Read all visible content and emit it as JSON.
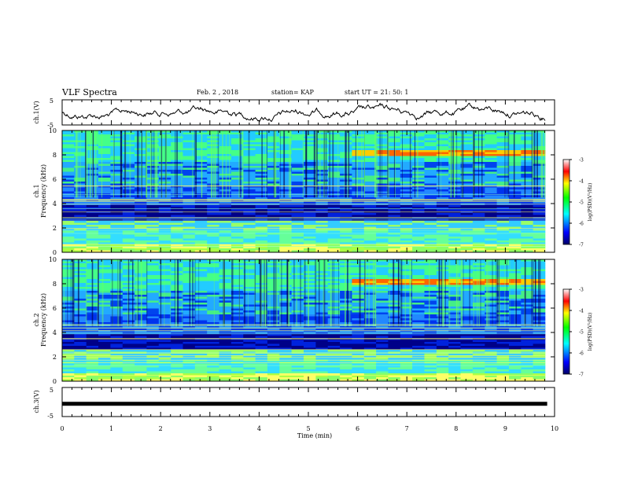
{
  "header": {
    "title": "VLF Spectra",
    "date": "Feb. 2 , 2018",
    "station": "station= KAP",
    "start": "start UT = 21: 50: 1"
  },
  "colors": {
    "trace": "#000000",
    "colormap": [
      "#000080",
      "#0000ff",
      "#00ffff",
      "#00ff00",
      "#ffff00",
      "#ff0000",
      "#ffffff"
    ]
  },
  "chart_data": [
    {
      "type": "line",
      "panel": "ch1-waveform",
      "ylabel": "ch.1(V)",
      "ylim": [
        -5,
        5
      ],
      "ytick_labels": [
        "-5",
        "5"
      ],
      "xlim": [
        0,
        10
      ],
      "series": [
        {
          "description_of_trace": "",
          "values": []
        }
      ]
    },
    {
      "type": "heatmap",
      "panel": "ch1-spectrogram",
      "ylabel": "ch.1 Frequency (kHz)",
      "ylim": [
        0,
        10
      ],
      "ytick_labels": [
        "0",
        "2",
        "4",
        "6",
        "8",
        "10"
      ],
      "xlim": [
        0,
        9.85
      ],
      "colorbar": {
        "label": "log(PSD)(V²/Hz)",
        "range": [
          -7,
          -3
        ],
        "tick_labels": [
          "-3",
          "-4",
          "-5",
          "-6",
          "-7"
        ]
      }
    },
    {
      "type": "heatmap",
      "panel": "ch2-spectrogram",
      "ylabel": "ch.2 Frequency (kHz)",
      "ylim": [
        0,
        10
      ],
      "ytick_labels": [
        "0",
        "2",
        "4",
        "6",
        "8",
        "10"
      ],
      "xlim": [
        0,
        9.85
      ],
      "colorbar": {
        "label": "log(PSD)(V²/Hz)",
        "range": [
          -7,
          -3
        ],
        "tick_labels": [
          "-3",
          "-4",
          "-5",
          "-6",
          "-7"
        ]
      }
    },
    {
      "type": "line",
      "panel": "ch3-waveform",
      "ylabel": "ch.3(V)",
      "ylim": [
        -5,
        5
      ],
      "ytick_labels": [
        "-5",
        "5"
      ],
      "xlim": [
        0,
        10
      ],
      "series": [
        {
          "values": [
            -0.6,
            -0.6
          ]
        }
      ]
    }
  ],
  "xaxis": {
    "label": "Time (min)",
    "range": [
      0,
      10
    ],
    "tick_labels": [
      "0",
      "1",
      "2",
      "3",
      "4",
      "5",
      "6",
      "7",
      "8",
      "9",
      "10"
    ]
  }
}
